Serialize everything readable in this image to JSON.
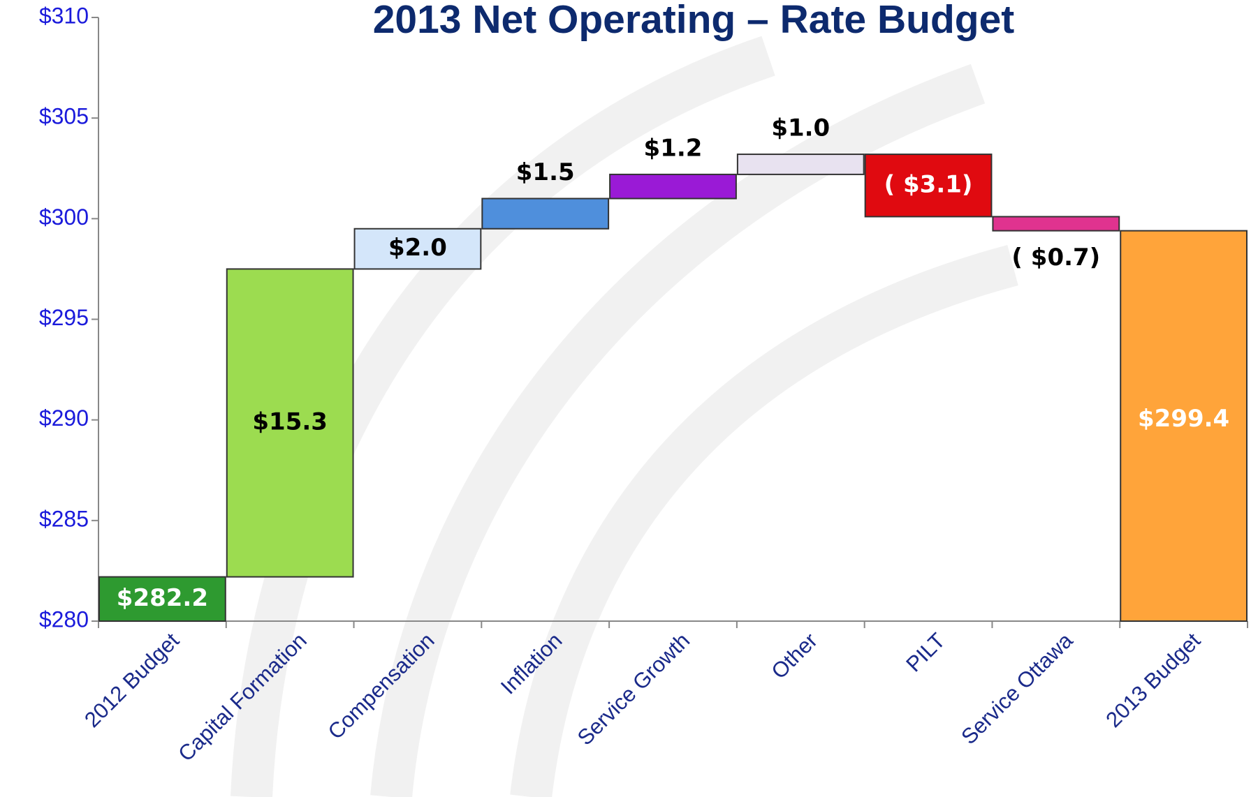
{
  "chart_data": {
    "type": "waterfall",
    "title": "2013 Net Operating – Rate Budget",
    "categories": [
      "2012 Budget",
      "Capital Formation",
      "Compensation",
      "Inflation",
      "Service Growth",
      "Other",
      "PILT",
      "Service Ottawa",
      "2013 Budget"
    ],
    "values": [
      282.2,
      15.3,
      2.0,
      1.5,
      1.2,
      1.0,
      -3.1,
      -0.7,
      299.4
    ],
    "value_labels": [
      "$282.2",
      "$15.3",
      "$2.0",
      "$1.5",
      "$1.2",
      "$1.0",
      "( $3.1)",
      "( $0.7)",
      "$299.4"
    ],
    "colors": [
      "#2e9a30",
      "#9cdc50",
      "#d4e6fa",
      "#4f8fdc",
      "#9a1ad6",
      "#e8e2f0",
      "#e00a10",
      "#e0338f",
      "#ffa43a"
    ],
    "value_label_colors": [
      "#ffffff",
      "#000000",
      "#000000",
      "#000000",
      "#000000",
      "#000000",
      "#ffffff",
      "#000000",
      "#ffffff"
    ],
    "ylim": [
      280,
      310
    ],
    "yticks": [
      {
        "value": 280,
        "label": "$280"
      },
      {
        "value": 285,
        "label": "$285"
      },
      {
        "value": 290,
        "label": "$290"
      },
      {
        "value": 295,
        "label": "$295"
      },
      {
        "value": 300,
        "label": "$300"
      },
      {
        "value": 305,
        "label": "$305"
      },
      {
        "value": 310,
        "label": "$310"
      }
    ]
  }
}
